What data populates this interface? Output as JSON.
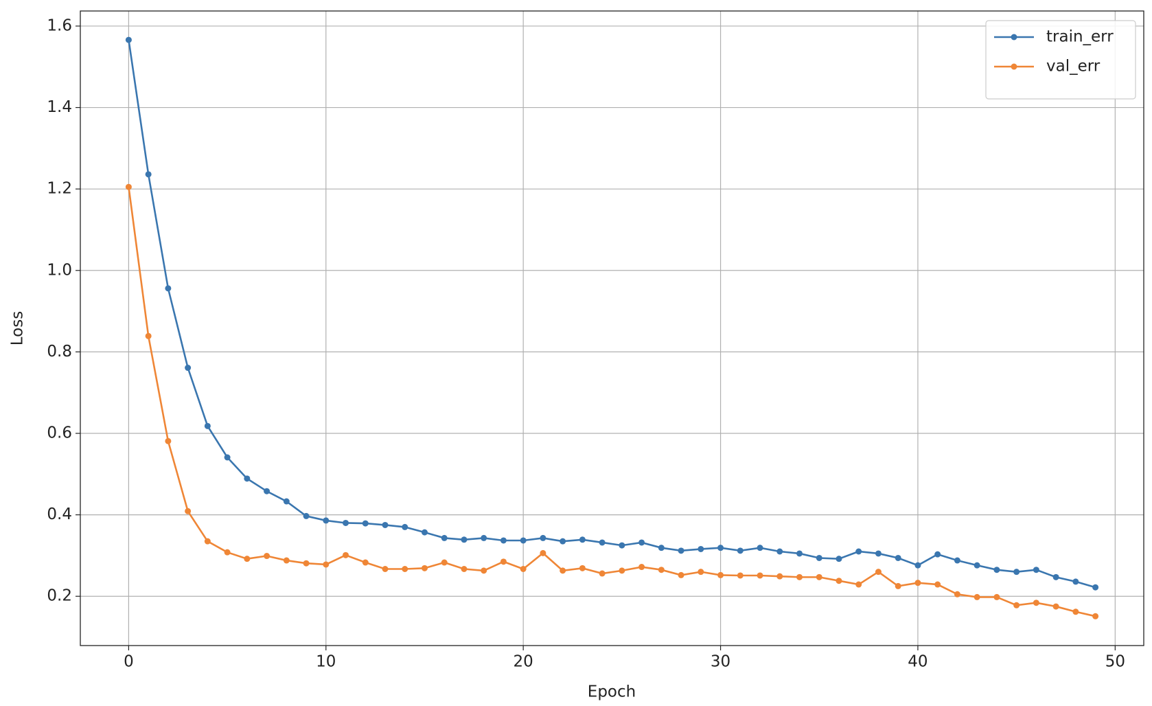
{
  "chart_data": {
    "type": "line",
    "xlabel": "Epoch",
    "ylabel": "Loss",
    "x": [
      0,
      1,
      2,
      3,
      4,
      5,
      6,
      7,
      8,
      9,
      10,
      11,
      12,
      13,
      14,
      15,
      16,
      17,
      18,
      19,
      20,
      21,
      22,
      23,
      24,
      25,
      26,
      27,
      28,
      29,
      30,
      31,
      32,
      33,
      34,
      35,
      36,
      37,
      38,
      39,
      40,
      41,
      42,
      43,
      44,
      45,
      46,
      47,
      48,
      49
    ],
    "series": [
      {
        "name": "train_err",
        "color": "#3a76af",
        "values": [
          1.566,
          1.236,
          0.956,
          0.761,
          0.618,
          0.541,
          0.489,
          0.458,
          0.433,
          0.397,
          0.386,
          0.38,
          0.379,
          0.375,
          0.37,
          0.357,
          0.343,
          0.339,
          0.343,
          0.337,
          0.337,
          0.343,
          0.335,
          0.339,
          0.332,
          0.325,
          0.332,
          0.319,
          0.312,
          0.316,
          0.319,
          0.312,
          0.319,
          0.31,
          0.305,
          0.294,
          0.292,
          0.31,
          0.305,
          0.294,
          0.276,
          0.303,
          0.288,
          0.276,
          0.265,
          0.26,
          0.265,
          0.247,
          0.236,
          0.222
        ]
      },
      {
        "name": "val_err",
        "color": "#ef8636",
        "values": [
          1.205,
          0.839,
          0.581,
          0.409,
          0.335,
          0.308,
          0.292,
          0.299,
          0.288,
          0.281,
          0.278,
          0.301,
          0.283,
          0.267,
          0.267,
          0.269,
          0.283,
          0.267,
          0.263,
          0.285,
          0.267,
          0.306,
          0.263,
          0.269,
          0.256,
          0.263,
          0.272,
          0.265,
          0.252,
          0.26,
          0.252,
          0.251,
          0.251,
          0.249,
          0.247,
          0.247,
          0.238,
          0.229,
          0.26,
          0.225,
          0.233,
          0.229,
          0.205,
          0.198,
          0.198,
          0.178,
          0.184,
          0.175,
          0.162,
          0.151
        ]
      }
    ],
    "xlim": [
      -2.45,
      51.45
    ],
    "xticks": [
      0,
      10,
      20,
      30,
      40,
      50
    ],
    "ylim": [
      0.079,
      1.637
    ],
    "yticks": [
      0.2,
      0.4,
      0.6,
      0.8,
      {
        "value": 1,
        "label": "1.0"
      },
      1.2,
      1.4,
      1.6
    ],
    "grid": true,
    "legend": "upper right"
  }
}
